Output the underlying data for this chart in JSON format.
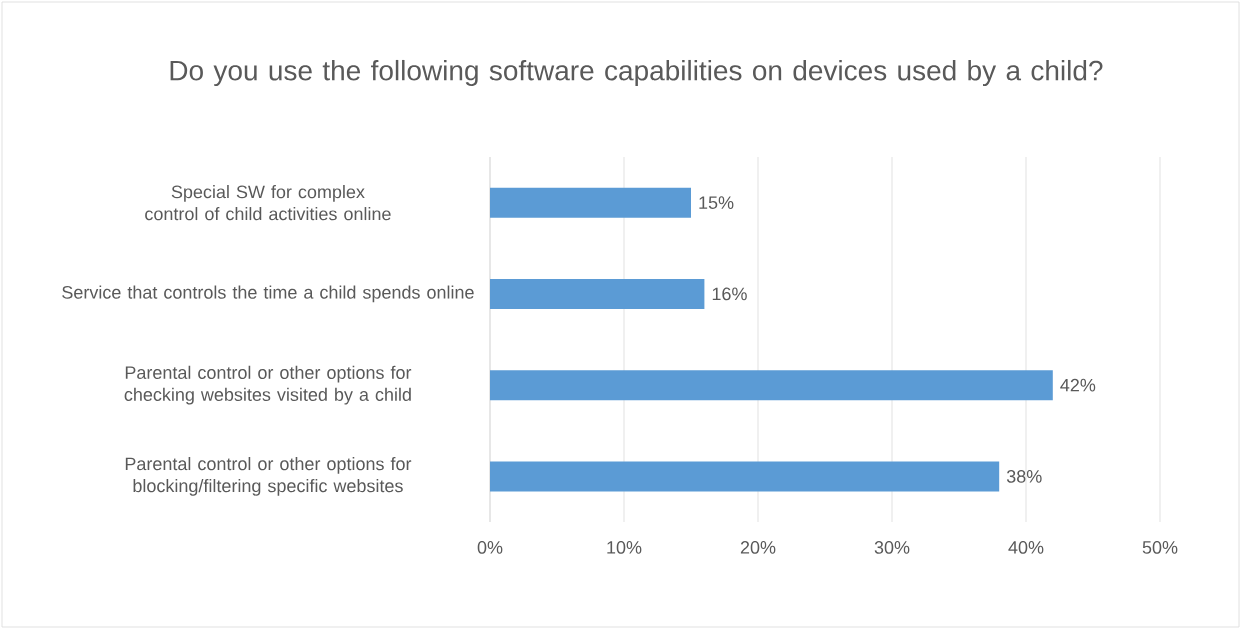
{
  "chart_data": {
    "type": "bar",
    "orientation": "horizontal",
    "title": "Do you use the following software capabilities on devices used by a child?",
    "categories": [
      "Special SW for complex control of child activities online",
      "Service that controls the time a child spends online",
      "Parental control or other options for checking websites visited by a child",
      "Parental control or other options for blocking/filtering specific websites"
    ],
    "values": [
      15,
      16,
      42,
      38
    ],
    "value_labels": [
      "15%",
      "16%",
      "42%",
      "38%"
    ],
    "color": "#5b9bd5",
    "xlim": [
      0,
      50
    ],
    "xticks": [
      {
        "value": 0,
        "label": "0%"
      },
      {
        "value": 10,
        "label": "10%"
      },
      {
        "value": 20,
        "label": "20%"
      },
      {
        "value": 30,
        "label": "30%"
      },
      {
        "value": 40,
        "label": "40%"
      },
      {
        "value": 50,
        "label": "50%"
      }
    ],
    "grid": "x"
  }
}
